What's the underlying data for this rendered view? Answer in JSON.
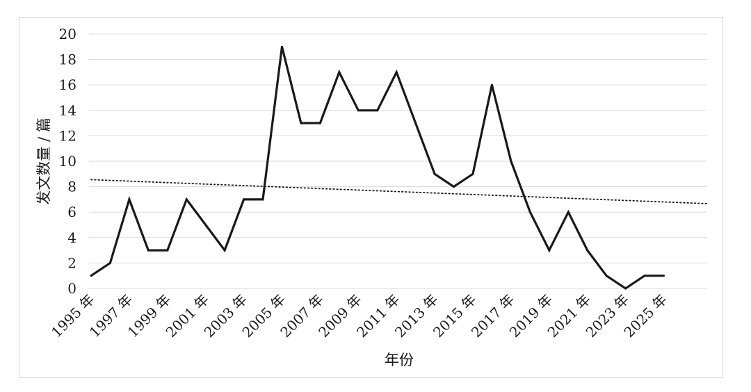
{
  "chart_data": {
    "type": "line",
    "xlabel": "年份",
    "ylabel": "发文数量 / 篇",
    "ylim": [
      0,
      20
    ],
    "y_ticks": [
      "0",
      "2",
      "4",
      "6",
      "8",
      "10",
      "12",
      "14",
      "16",
      "18",
      "20"
    ],
    "x": [
      "1995 年",
      "1996 年",
      "1997 年",
      "1998 年",
      "1999 年",
      "2000 年",
      "2001 年",
      "2002 年",
      "2003 年",
      "2004 年",
      "2005 年",
      "2006 年",
      "2007 年",
      "2008 年",
      "2009 年",
      "2010 年",
      "2011 年",
      "2012 年",
      "2013 年",
      "2014 年",
      "2015 年",
      "2016 年",
      "2017 年",
      "2018 年",
      "2019 年",
      "2020 年",
      "2021 年",
      "2022 年",
      "2023 年",
      "2024 年",
      "2025 年"
    ],
    "x_tick_labels": [
      "1995 年",
      "1997 年",
      "1999 年",
      "2001 年",
      "2003 年",
      "2005 年",
      "2007 年",
      "2009 年",
      "2011 年",
      "2013 年",
      "2015 年",
      "2017 年",
      "2019 年",
      "2021 年",
      "2023 年",
      "2025 年"
    ],
    "series": [
      {
        "values": [
          1,
          2,
          7,
          3,
          3,
          7,
          5,
          3,
          7,
          7,
          19,
          13,
          13,
          17,
          14,
          14,
          17,
          13,
          9,
          8,
          9,
          16,
          10,
          6,
          3,
          6,
          3,
          1,
          0,
          1,
          1
        ]
      }
    ],
    "trendline": {
      "type": "linear",
      "style": "dotted"
    },
    "grid": true
  }
}
